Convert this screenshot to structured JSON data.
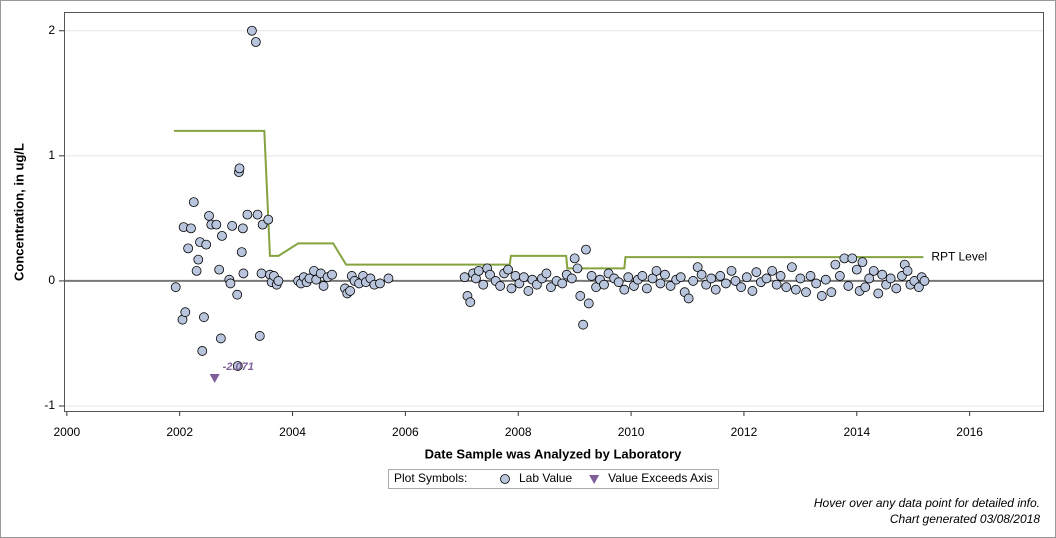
{
  "chart_data": {
    "type": "scatter",
    "xlabel": "Date Sample was Analyzed by Laboratory",
    "ylabel": "Concentration, in ug/L",
    "xlim": [
      1999.95,
      2017.3
    ],
    "ylim": [
      -1.04,
      2.15
    ],
    "xticks": [
      2000,
      2002,
      2004,
      2006,
      2008,
      2010,
      2012,
      2014,
      2016
    ],
    "yticks": [
      -1,
      0,
      1,
      2
    ],
    "grid": true,
    "legend_title": "Plot Symbols:",
    "series": [
      {
        "name": "Lab Value",
        "type": "scatter",
        "marker": "circle",
        "color": "#b9c5dc",
        "x": [
          2001.93,
          2002.05,
          2002.07,
          2002.1,
          2002.15,
          2002.2,
          2002.25,
          2002.3,
          2002.33,
          2002.36,
          2002.4,
          2002.43,
          2002.47,
          2002.52,
          2002.56,
          2002.65,
          2002.7,
          2002.73,
          2002.75,
          2002.88,
          2002.9,
          2002.93,
          2003.02,
          2003.03,
          2003.05,
          2003.06,
          2003.1,
          2003.12,
          2003.13,
          2003.2,
          2003.28,
          2003.35,
          2003.38,
          2003.42,
          2003.45,
          2003.47,
          2003.57,
          2003.6,
          2003.63,
          2003.67,
          2003.72,
          2003.75,
          2004.1,
          2004.15,
          2004.2,
          2004.25,
          2004.3,
          2004.38,
          2004.42,
          2004.5,
          2004.55,
          2004.62,
          2004.7,
          2004.93,
          2004.97,
          2005.02,
          2005.05,
          2005.1,
          2005.18,
          2005.25,
          2005.3,
          2005.38,
          2005.45,
          2005.55,
          2005.7,
          2007.05,
          2007.1,
          2007.15,
          2007.2,
          2007.25,
          2007.3,
          2007.38,
          2007.45,
          2007.5,
          2007.6,
          2007.68,
          2007.75,
          2007.82,
          2007.88,
          2007.95,
          2008.02,
          2008.1,
          2008.18,
          2008.25,
          2008.33,
          2008.42,
          2008.5,
          2008.58,
          2008.68,
          2008.78,
          2008.86,
          2008.95,
          2009.0,
          2009.05,
          2009.1,
          2009.15,
          2009.2,
          2009.25,
          2009.3,
          2009.38,
          2009.45,
          2009.52,
          2009.6,
          2009.7,
          2009.78,
          2009.88,
          2009.95,
          2010.05,
          2010.12,
          2010.2,
          2010.28,
          2010.38,
          2010.45,
          2010.52,
          2010.6,
          2010.7,
          2010.8,
          2010.88,
          2010.95,
          2011.02,
          2011.1,
          2011.18,
          2011.25,
          2011.33,
          2011.42,
          2011.5,
          2011.58,
          2011.68,
          2011.78,
          2011.85,
          2011.95,
          2012.05,
          2012.15,
          2012.22,
          2012.3,
          2012.4,
          2012.5,
          2012.58,
          2012.65,
          2012.75,
          2012.85,
          2012.92,
          2013.0,
          2013.1,
          2013.18,
          2013.28,
          2013.38,
          2013.45,
          2013.55,
          2013.62,
          2013.7,
          2013.78,
          2013.85,
          2013.92,
          2014.0,
          2014.05,
          2014.1,
          2014.15,
          2014.22,
          2014.3,
          2014.38,
          2014.45,
          2014.52,
          2014.6,
          2014.7,
          2014.8,
          2014.85,
          2014.9,
          2014.95,
          2015.02,
          2015.1,
          2015.15,
          2015.2
        ],
        "values": [
          -0.05,
          -0.31,
          0.43,
          -0.25,
          0.26,
          0.42,
          0.63,
          0.08,
          0.17,
          0.31,
          -0.56,
          -0.29,
          0.29,
          0.52,
          0.45,
          0.45,
          0.09,
          -0.46,
          0.36,
          0.01,
          -0.02,
          0.44,
          -0.11,
          -0.68,
          0.87,
          0.9,
          0.23,
          0.42,
          0.06,
          0.53,
          2.0,
          1.91,
          0.53,
          -0.44,
          0.06,
          0.45,
          0.49,
          0.05,
          -0.01,
          0.04,
          -0.03,
          0.0,
          0.0,
          -0.02,
          0.03,
          -0.01,
          0.02,
          0.08,
          0.01,
          0.06,
          -0.04,
          0.03,
          0.05,
          -0.06,
          -0.1,
          -0.08,
          0.04,
          0.0,
          -0.02,
          0.04,
          -0.01,
          0.02,
          -0.03,
          -0.02,
          0.02,
          0.03,
          -0.12,
          -0.17,
          0.06,
          0.02,
          0.08,
          -0.03,
          0.1,
          0.05,
          0.0,
          -0.04,
          0.06,
          0.09,
          -0.06,
          0.04,
          -0.02,
          0.03,
          -0.08,
          0.01,
          -0.03,
          0.02,
          0.06,
          -0.05,
          0.0,
          -0.02,
          0.05,
          0.02,
          0.18,
          0.1,
          -0.12,
          -0.35,
          0.25,
          -0.18,
          0.04,
          -0.05,
          0.01,
          -0.03,
          0.06,
          0.02,
          -0.01,
          -0.07,
          0.03,
          -0.04,
          0.01,
          0.04,
          -0.06,
          0.02,
          0.08,
          -0.02,
          0.05,
          -0.04,
          0.01,
          0.03,
          -0.09,
          -0.14,
          0.0,
          0.11,
          0.05,
          -0.03,
          0.02,
          -0.07,
          0.04,
          -0.02,
          0.08,
          0.0,
          -0.05,
          0.03,
          -0.08,
          0.07,
          -0.01,
          0.02,
          0.08,
          -0.03,
          0.04,
          -0.05,
          0.11,
          -0.07,
          0.02,
          -0.09,
          0.04,
          -0.02,
          -0.12,
          0.01,
          -0.09,
          0.13,
          0.04,
          0.18,
          -0.04,
          0.18,
          0.09,
          -0.08,
          0.15,
          -0.05,
          0.02,
          0.08,
          -0.1,
          0.05,
          -0.03,
          0.02,
          -0.06,
          0.04,
          0.13,
          0.08,
          -0.03,
          0.0,
          -0.05,
          0.03,
          0.0
        ]
      },
      {
        "name": "Value Exceeds Axis",
        "type": "scatter",
        "marker": "triangle",
        "color": "#7e5f9a",
        "x": [
          2002.62
        ],
        "values": [
          -2.071
        ],
        "value_labels": [
          "-2.071"
        ]
      },
      {
        "name": "RPT Level",
        "type": "line",
        "color": "#84a33f",
        "x": [
          2001.9,
          2003.5,
          2003.6,
          2003.75,
          2004.1,
          2004.72,
          2004.95,
          2007.85,
          2007.87,
          2008.85,
          2008.87,
          2009.88,
          2009.9,
          2015.18
        ],
        "values": [
          1.2,
          1.2,
          0.2,
          0.2,
          0.3,
          0.3,
          0.13,
          0.13,
          0.2,
          0.2,
          0.1,
          0.1,
          0.19,
          0.19
        ]
      }
    ]
  },
  "notes": [
    "Hover over any data point for detailed info.",
    "Chart generated 03/08/2018"
  ]
}
